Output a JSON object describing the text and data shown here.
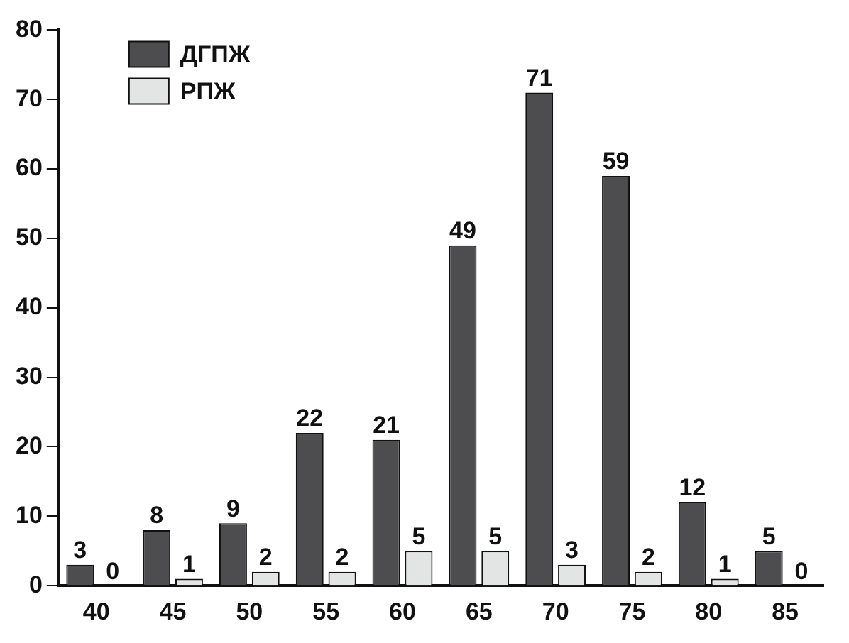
{
  "chart_data": {
    "type": "bar",
    "categories": [
      "40",
      "45",
      "50",
      "55",
      "60",
      "65",
      "70",
      "75",
      "80",
      "85"
    ],
    "series": [
      {
        "name": "ДГПЖ",
        "color": "#4d4d4f",
        "values": [
          3,
          8,
          9,
          22,
          21,
          49,
          71,
          59,
          12,
          5
        ]
      },
      {
        "name": "РПЖ",
        "color": "#e3e4e4",
        "values": [
          0,
          1,
          2,
          2,
          5,
          5,
          3,
          2,
          1,
          0
        ]
      }
    ],
    "ylim": [
      0,
      80
    ],
    "yticks": [
      0,
      10,
      20,
      30,
      40,
      50,
      60,
      70,
      80
    ],
    "grid": false,
    "legend": "top left",
    "data_labels": true
  }
}
